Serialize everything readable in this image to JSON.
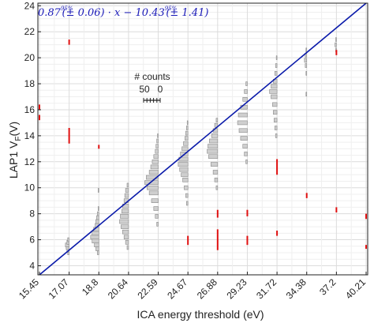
{
  "chart_data": {
    "type": "line",
    "xlabel": "ICA energy threshold (eV)",
    "ylabel_main": "LAP1 V",
    "ylabel_sub": "F",
    "ylabel_unit": "(V)",
    "x_ticks": [
      "15.45",
      "17.07",
      "18.8",
      "20.64",
      "22.59",
      "24.67",
      "26.88",
      "29.23",
      "31.72",
      "34.38",
      "37.2",
      "40.21"
    ],
    "ylim": [
      3.3,
      24.2
    ],
    "y_ticks": [
      4,
      6,
      8,
      10,
      12,
      14,
      16,
      18,
      20,
      22,
      24
    ],
    "grid": true,
    "fit": {
      "label_parts": [
        "0.87",
        "(± 0.06)",
        " · x − 10.43",
        "(± 1.41)"
      ],
      "sup": "95%",
      "x_start_index": 0,
      "y_start": 3.3,
      "x_end_index": 11,
      "y_end": 24.2,
      "color": "#0a1aaa"
    },
    "counts_legend": {
      "title": "# counts",
      "left": "50",
      "right": "0"
    },
    "histograms": [
      {
        "x_index": 1,
        "bins": [
          [
            5.0,
            2
          ],
          [
            5.2,
            3
          ],
          [
            5.4,
            4
          ],
          [
            5.6,
            5
          ],
          [
            5.8,
            3
          ],
          [
            6.0,
            2
          ]
        ]
      },
      {
        "x_index": 2,
        "bins": [
          [
            5.0,
            2
          ],
          [
            5.3,
            4
          ],
          [
            5.6,
            6
          ],
          [
            5.9,
            9
          ],
          [
            6.2,
            11
          ],
          [
            6.5,
            9
          ],
          [
            6.8,
            7
          ],
          [
            7.1,
            5
          ],
          [
            7.4,
            4
          ],
          [
            7.7,
            3
          ],
          [
            8.0,
            2
          ],
          [
            8.4,
            1
          ],
          [
            9.8,
            1
          ]
        ]
      },
      {
        "x_index": 3,
        "bins": [
          [
            5.4,
            2
          ],
          [
            5.8,
            4
          ],
          [
            6.2,
            6
          ],
          [
            6.6,
            8
          ],
          [
            7.0,
            10
          ],
          [
            7.4,
            12
          ],
          [
            7.8,
            11
          ],
          [
            8.2,
            9
          ],
          [
            8.6,
            8
          ],
          [
            9.0,
            6
          ],
          [
            9.4,
            5
          ],
          [
            9.8,
            4
          ],
          [
            10.2,
            2
          ]
        ]
      },
      {
        "x_index": 4,
        "bins": [
          [
            7.2,
            2
          ],
          [
            7.8,
            4
          ],
          [
            8.4,
            6
          ],
          [
            9.0,
            9
          ],
          [
            9.6,
            12
          ],
          [
            10.0,
            15
          ],
          [
            10.4,
            18
          ],
          [
            10.8,
            16
          ],
          [
            11.2,
            12
          ],
          [
            11.6,
            10
          ],
          [
            12.0,
            8
          ],
          [
            12.4,
            6
          ],
          [
            12.8,
            4
          ],
          [
            13.2,
            3
          ],
          [
            13.6,
            2
          ],
          [
            14.0,
            1
          ]
        ]
      },
      {
        "x_index": 5,
        "bins": [
          [
            8.8,
            2
          ],
          [
            9.4,
            3
          ],
          [
            10.0,
            5
          ],
          [
            10.6,
            7
          ],
          [
            11.0,
            9
          ],
          [
            11.4,
            11
          ],
          [
            11.8,
            13
          ],
          [
            12.2,
            12
          ],
          [
            12.6,
            10
          ],
          [
            13.0,
            8
          ],
          [
            13.4,
            6
          ],
          [
            13.8,
            4
          ],
          [
            14.2,
            3
          ],
          [
            14.6,
            2
          ],
          [
            15.0,
            1
          ]
        ]
      },
      {
        "x_index": 6,
        "bins": [
          [
            10.0,
            2
          ],
          [
            10.6,
            4
          ],
          [
            11.2,
            6
          ],
          [
            11.8,
            9
          ],
          [
            12.4,
            12
          ],
          [
            12.8,
            14
          ],
          [
            13.2,
            13
          ],
          [
            13.6,
            11
          ],
          [
            14.0,
            8
          ],
          [
            14.4,
            6
          ],
          [
            14.8,
            4
          ],
          [
            15.2,
            2
          ]
        ]
      },
      {
        "x_index": 7,
        "bins": [
          [
            12.0,
            2
          ],
          [
            12.6,
            4
          ],
          [
            13.2,
            6
          ],
          [
            13.8,
            9
          ],
          [
            14.4,
            11
          ],
          [
            15.0,
            13
          ],
          [
            15.6,
            12
          ],
          [
            16.2,
            9
          ],
          [
            16.8,
            6
          ],
          [
            17.4,
            4
          ],
          [
            18.0,
            2
          ]
        ]
      },
      {
        "x_index": 8,
        "bins": [
          [
            14.0,
            2
          ],
          [
            14.6,
            3
          ],
          [
            15.2,
            4
          ],
          [
            15.8,
            5
          ],
          [
            16.4,
            6
          ],
          [
            17.0,
            8
          ],
          [
            17.4,
            10
          ],
          [
            17.8,
            8
          ],
          [
            18.2,
            5
          ],
          [
            18.8,
            3
          ],
          [
            19.4,
            2
          ],
          [
            20.0,
            1
          ]
        ]
      },
      {
        "x_index": 9,
        "bins": [
          [
            17.2,
            1
          ],
          [
            18.8,
            1
          ],
          [
            19.4,
            2
          ],
          [
            19.8,
            3
          ],
          [
            20.2,
            2
          ],
          [
            20.6,
            1
          ]
        ]
      },
      {
        "x_index": 10,
        "bins": [
          [
            20.6,
            1
          ],
          [
            21.0,
            2
          ],
          [
            21.4,
            1
          ]
        ]
      }
    ],
    "outliers": [
      {
        "x_index": 0,
        "y0": 15.2,
        "y1": 15.6
      },
      {
        "x_index": 0,
        "y0": 16.0,
        "y1": 16.4
      },
      {
        "x_index": 1,
        "y0": 21.0,
        "y1": 21.4
      },
      {
        "x_index": 1,
        "y0": 13.4,
        "y1": 14.6
      },
      {
        "x_index": 2,
        "y0": 13.0,
        "y1": 13.3
      },
      {
        "x_index": 5,
        "y0": 5.6,
        "y1": 6.3
      },
      {
        "x_index": 6,
        "y0": 7.7,
        "y1": 8.3
      },
      {
        "x_index": 6,
        "y0": 6.4,
        "y1": 6.8
      },
      {
        "x_index": 6,
        "y0": 5.2,
        "y1": 6.4
      },
      {
        "x_index": 7,
        "y0": 7.8,
        "y1": 8.3
      },
      {
        "x_index": 7,
        "y0": 5.6,
        "y1": 6.3
      },
      {
        "x_index": 8,
        "y0": 11.0,
        "y1": 12.2
      },
      {
        "x_index": 8,
        "y0": 6.3,
        "y1": 6.7
      },
      {
        "x_index": 9,
        "y0": 9.2,
        "y1": 9.6
      },
      {
        "x_index": 10,
        "y0": 20.2,
        "y1": 20.6
      },
      {
        "x_index": 10,
        "y0": 8.1,
        "y1": 8.5
      },
      {
        "x_index": 11,
        "y0": 7.6,
        "y1": 8.0
      },
      {
        "x_index": 11,
        "y0": 5.3,
        "y1": 5.6
      }
    ],
    "colors": {
      "hist_fill": "#cfcfcf",
      "hist_stroke": "#8a8a8a",
      "outlier": "#e01010",
      "grid": "#e6e6e6"
    }
  }
}
